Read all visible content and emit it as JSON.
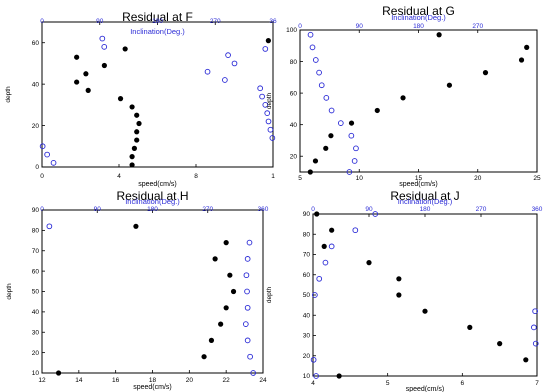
{
  "chart_data": [
    {
      "type": "scatter",
      "title": "Residual at F",
      "xlabel": "speed(cm/s)",
      "x2label": "Inclination(Deg.)",
      "ylabel": "depth",
      "xlim": [
        0,
        10
      ],
      "x2lim": [
        0,
        360
      ],
      "ylim": [
        0,
        70
      ],
      "xticks": [
        "0",
        "4",
        "8",
        "1"
      ],
      "x2ticks": [
        "0",
        "90",
        "180",
        "270",
        "36"
      ],
      "yticks": [
        "0",
        "20",
        "40",
        "60"
      ],
      "series": [
        {
          "role": "speed",
          "points": [
            [
              9.8,
              61
            ],
            [
              3.6,
              57
            ],
            [
              1.5,
              53
            ],
            [
              2.7,
              49
            ],
            [
              1.9,
              45
            ],
            [
              1.5,
              41
            ],
            [
              2.0,
              37
            ],
            [
              3.4,
              33
            ],
            [
              3.9,
              29
            ],
            [
              4.1,
              25
            ],
            [
              4.2,
              21
            ],
            [
              4.1,
              17
            ],
            [
              4.1,
              13
            ],
            [
              4.0,
              9
            ],
            [
              3.9,
              5
            ],
            [
              3.9,
              1
            ]
          ]
        },
        {
          "role": "inclination",
          "points": [
            [
              94,
              62
            ],
            [
              97,
              58
            ],
            [
              348,
              57
            ],
            [
              290,
              54
            ],
            [
              300,
              50
            ],
            [
              258,
              46
            ],
            [
              285,
              42
            ],
            [
              340,
              38
            ],
            [
              343,
              34
            ],
            [
              348,
              30
            ],
            [
              351,
              26
            ],
            [
              353,
              22
            ],
            [
              356,
              18
            ],
            [
              359,
              14
            ],
            [
              1,
              10
            ],
            [
              8,
              6
            ],
            [
              18,
              2
            ]
          ]
        }
      ]
    },
    {
      "type": "scatter",
      "title": "Residual at G",
      "xlabel": "speed(cm/s)",
      "x2label": "Inclination(Deg.)",
      "ylabel": "depth",
      "xlim": [
        5,
        28
      ],
      "x2lim": [
        0,
        360
      ],
      "ylim": [
        10,
        100
      ],
      "xticks": [
        "5",
        "10",
        "15",
        "20",
        "25"
      ],
      "x2ticks": [
        "0",
        "90",
        "180",
        "270"
      ],
      "yticks": [
        "20",
        "40",
        "60",
        "80",
        "100"
      ],
      "series": [
        {
          "role": "speed",
          "points": [
            [
              18.5,
              97
            ],
            [
              27.0,
              89
            ],
            [
              26.5,
              81
            ],
            [
              23.0,
              73
            ],
            [
              19.5,
              65
            ],
            [
              15.0,
              57
            ],
            [
              12.5,
              49
            ],
            [
              10.0,
              41
            ],
            [
              8.0,
              33
            ],
            [
              7.5,
              25
            ],
            [
              6.5,
              17
            ],
            [
              6.0,
              10
            ]
          ]
        },
        {
          "role": "inclination",
          "points": [
            [
              16,
              97
            ],
            [
              19,
              89
            ],
            [
              24,
              81
            ],
            [
              29,
              73
            ],
            [
              33,
              65
            ],
            [
              40,
              57
            ],
            [
              48,
              49
            ],
            [
              62,
              41
            ],
            [
              78,
              33
            ],
            [
              85,
              25
            ],
            [
              83,
              17
            ],
            [
              75,
              10
            ]
          ]
        }
      ]
    },
    {
      "type": "scatter",
      "title": "Residual at H",
      "xlabel": "speed(cm/s)",
      "x2label": "Inclination(Deg.)",
      "ylabel": "depth",
      "xlim": [
        12,
        24
      ],
      "x2lim": [
        0,
        360
      ],
      "ylim": [
        10,
        90
      ],
      "xticks": [
        "12",
        "14",
        "16",
        "18",
        "20",
        "22",
        "24"
      ],
      "x2ticks": [
        "0",
        "90",
        "180",
        "270",
        "360"
      ],
      "yticks": [
        "10",
        "20",
        "30",
        "40",
        "50",
        "60",
        "70",
        "80",
        "90"
      ],
      "series": [
        {
          "role": "speed",
          "points": [
            [
              17.1,
              82
            ],
            [
              22.0,
              74
            ],
            [
              21.4,
              66
            ],
            [
              22.2,
              58
            ],
            [
              22.4,
              50
            ],
            [
              22.0,
              42
            ],
            [
              21.7,
              34
            ],
            [
              21.2,
              26
            ],
            [
              20.8,
              18
            ],
            [
              12.9,
              10
            ]
          ]
        },
        {
          "role": "inclination",
          "points": [
            [
              12,
              82
            ],
            [
              338,
              74
            ],
            [
              335,
              66
            ],
            [
              333,
              58
            ],
            [
              334,
              50
            ],
            [
              335,
              42
            ],
            [
              332,
              34
            ],
            [
              335,
              26
            ],
            [
              339,
              18
            ],
            [
              344,
              10
            ]
          ]
        }
      ]
    },
    {
      "type": "scatter",
      "title": "Residual at J",
      "xlabel": "speed(cm/s)",
      "x2label": "Inclination(Deg.)",
      "ylabel": "depth",
      "xlim": [
        4,
        7
      ],
      "x2lim": [
        0,
        360
      ],
      "ylim": [
        10,
        90
      ],
      "xticks": [
        "4",
        "5",
        "6",
        "7"
      ],
      "x2ticks": [
        "0",
        "90",
        "180",
        "270",
        "360"
      ],
      "yticks": [
        "10",
        "20",
        "30",
        "40",
        "50",
        "60",
        "70",
        "80",
        "90"
      ],
      "series": [
        {
          "role": "speed",
          "points": [
            [
              4.05,
              90
            ],
            [
              4.25,
              82
            ],
            [
              4.15,
              74
            ],
            [
              4.75,
              66
            ],
            [
              5.15,
              58
            ],
            [
              5.15,
              50
            ],
            [
              5.5,
              42
            ],
            [
              6.1,
              34
            ],
            [
              6.5,
              26
            ],
            [
              6.85,
              18
            ],
            [
              4.35,
              10
            ]
          ]
        },
        {
          "role": "inclination",
          "points": [
            [
              100,
              90
            ],
            [
              68,
              82
            ],
            [
              30,
              74
            ],
            [
              20,
              66
            ],
            [
              10,
              58
            ],
            [
              3,
              50
            ],
            [
              357,
              42
            ],
            [
              355,
              34
            ],
            [
              358,
              26
            ],
            [
              1,
              18
            ],
            [
              5,
              10
            ]
          ]
        }
      ]
    }
  ]
}
